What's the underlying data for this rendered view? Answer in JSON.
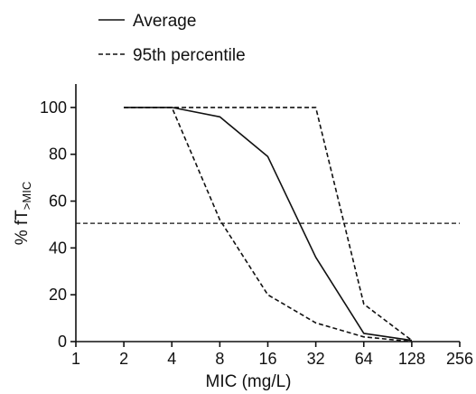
{
  "chart_data": {
    "type": "line",
    "xlabel": "MIC (mg/L)",
    "ylabel_main": "% f",
    "ylabel_T": "T",
    "ylabel_sub": ">MIC",
    "x_scale": "log2",
    "x_ticks": [
      1,
      2,
      4,
      8,
      16,
      32,
      64,
      128,
      256
    ],
    "xlim": [
      1,
      256
    ],
    "y_ticks": [
      0,
      20,
      40,
      60,
      80,
      100
    ],
    "ylim": [
      0,
      110
    ],
    "grid": false,
    "legend_position": "top-left",
    "series": [
      {
        "name": "Average",
        "style": "solid",
        "color": "#111111",
        "x": [
          2,
          4,
          8,
          16,
          32,
          64,
          128
        ],
        "y": [
          100,
          100,
          96,
          79,
          36,
          3.5,
          0.5
        ]
      },
      {
        "name": "95th percentile",
        "style": "dashed",
        "color": "#111111",
        "x": [
          2,
          4,
          32,
          64,
          128
        ],
        "y": [
          100,
          100,
          100,
          16,
          0.5
        ]
      },
      {
        "name": "",
        "style": "dashed",
        "color": "#111111",
        "x": [
          2,
          4,
          8,
          16,
          32,
          64,
          128
        ],
        "y": [
          100,
          100,
          52,
          20,
          8,
          2,
          0
        ]
      }
    ],
    "reference_line": {
      "y": 50.5,
      "style": "dashed"
    }
  }
}
